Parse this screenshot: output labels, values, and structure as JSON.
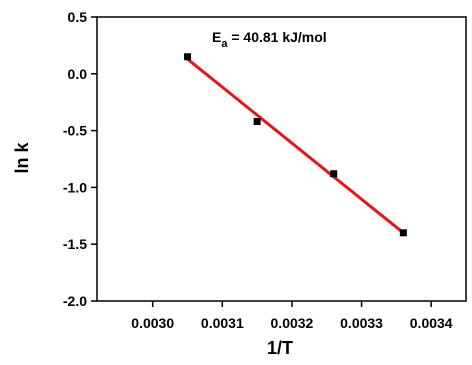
{
  "chart_data": {
    "type": "scatter",
    "title": "",
    "xlabel": "1/T",
    "ylabel": "ln k",
    "xlim": [
      0.00292,
      0.00345
    ],
    "ylim": [
      -2.0,
      0.5
    ],
    "xticks": [
      0.003,
      0.0031,
      0.0032,
      0.0033,
      0.0034
    ],
    "xtick_labels": [
      "0.0030",
      "0.0031",
      "0.0032",
      "0.0033",
      "0.0034"
    ],
    "yticks": [
      0.5,
      0.0,
      -0.5,
      -1.0,
      -1.5,
      -2.0
    ],
    "ytick_labels": [
      "0.5",
      "0.0",
      "-0.5",
      "-1.0",
      "-1.5",
      "-2.0"
    ],
    "grid": false,
    "series": [
      {
        "kind": "points",
        "marker": "square",
        "color": "#000000",
        "x": [
          0.00305,
          0.00315,
          0.00326,
          0.00336
        ],
        "y": [
          0.15,
          -0.42,
          -0.88,
          -1.4
        ]
      },
      {
        "kind": "fit-line",
        "color": "#e8141b",
        "x": [
          0.00305,
          0.00336
        ],
        "y": [
          0.13,
          -1.4
        ]
      }
    ],
    "annotation": {
      "prefix": "E",
      "subscript": "a",
      "suffix": " = 40.81 kJ/mol"
    }
  }
}
